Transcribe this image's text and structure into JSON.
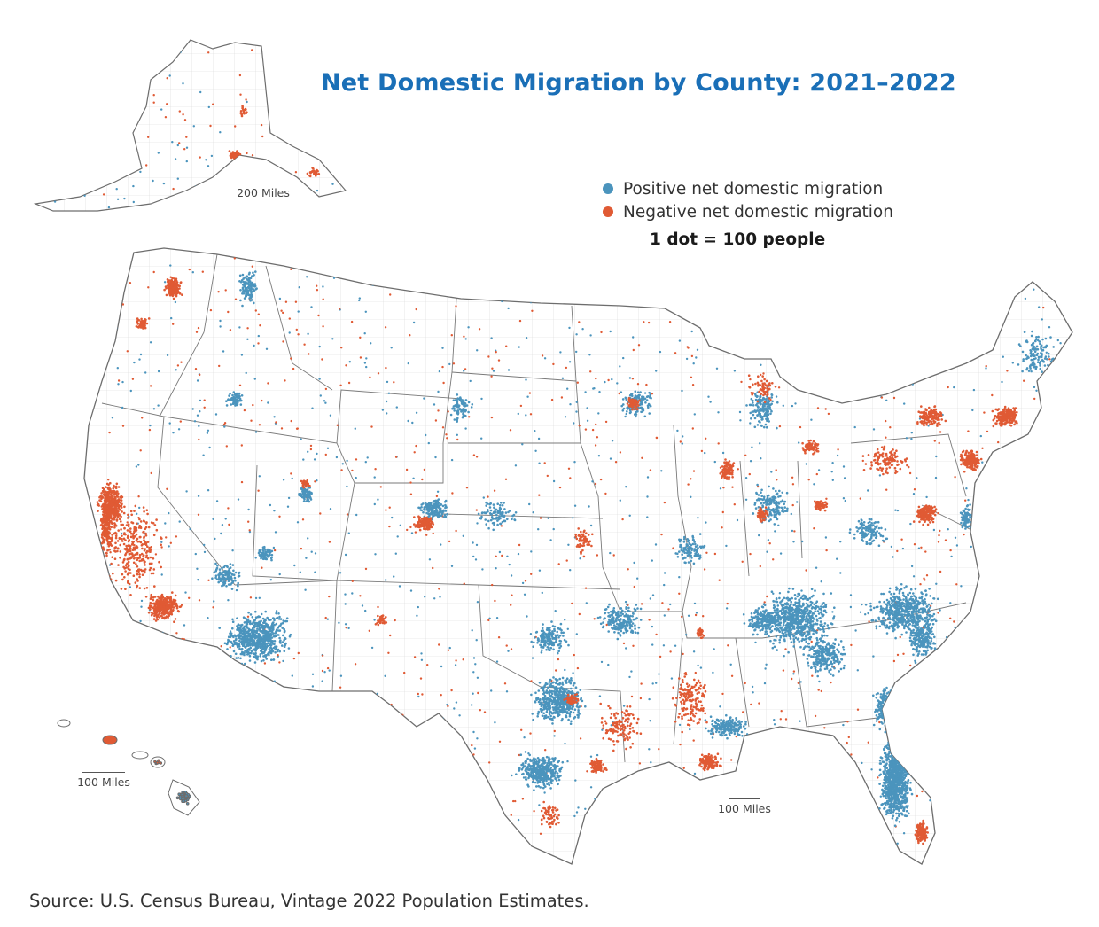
{
  "title": "Net Domestic Migration by County: 2021–2022",
  "legend": {
    "positive_label": "Positive net domestic migration",
    "negative_label": "Negative net domestic migration",
    "dot_value_note": "1 dot = 100 people"
  },
  "colors": {
    "positive": "#4b94bd",
    "negative": "#e05a34",
    "title": "#1a6fb7",
    "state_border": "#6d6d6d",
    "county_border": "#d2d2d2"
  },
  "scale_bars": {
    "alaska": "200 Miles",
    "hawaii": "100 Miles",
    "contiguous": "100 Miles"
  },
  "source": "Source: U.S. Census Bureau, Vintage 2022 Population Estimates."
}
